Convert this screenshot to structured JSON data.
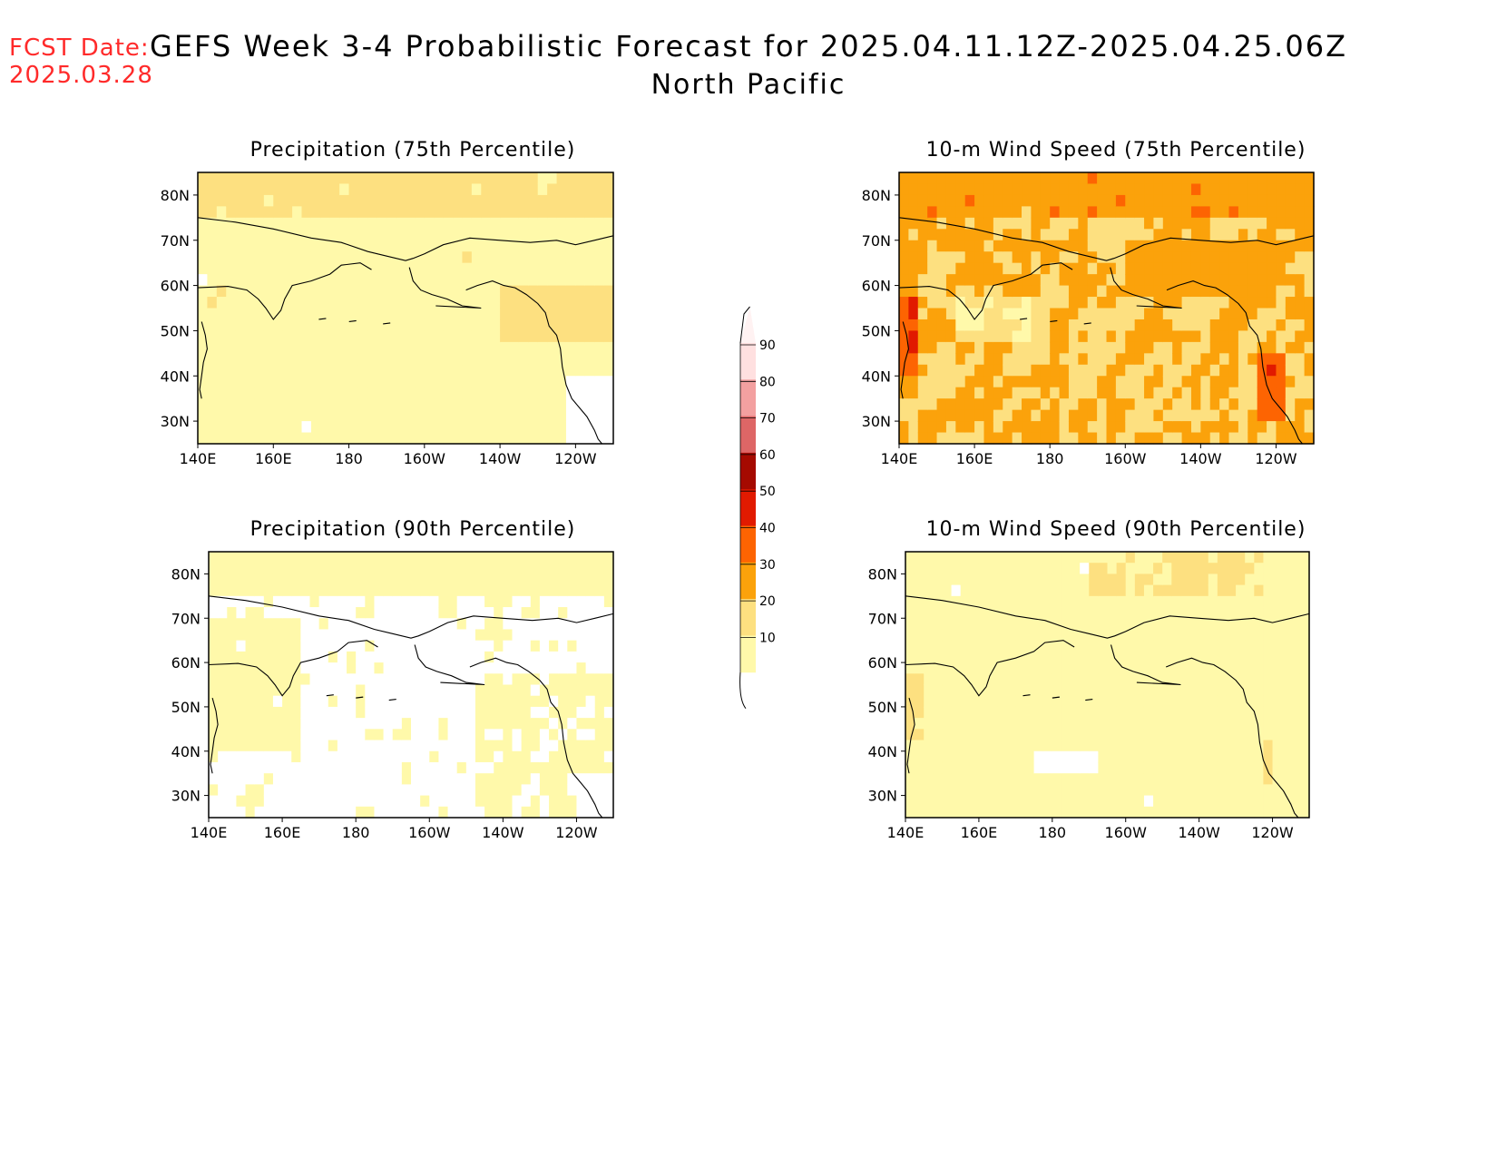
{
  "header": {
    "fcst_label": "FCST Date:",
    "fcst_date": "2025.03.28",
    "title": "GEFS Week 3-4 Probabilistic Forecast for 2025.04.11.12Z-2025.04.25.06Z",
    "subtitle": "North Pacific"
  },
  "colors": {
    "lt10": "#ffffff",
    "c10": "#fff9aa",
    "c20": "#fde080",
    "c30": "#fba20b",
    "c40": "#fd6402",
    "c50": "#e11a00",
    "c60": "#a50a00",
    "c70": "#de6666",
    "c80": "#f3a0a0",
    "c90": "#ffe0e0"
  },
  "axes": {
    "x_ticks": [
      "140E",
      "160E",
      "180",
      "160W",
      "140W",
      "120W"
    ],
    "y_ticks": [
      "80N",
      "70N",
      "60N",
      "50N",
      "40N",
      "30N"
    ]
  },
  "panels": [
    {
      "title": "Precipitation (75th Percentile)",
      "dominant": "10-30"
    },
    {
      "title": "10-m Wind Speed (75th Percentile)",
      "dominant": "20-50"
    },
    {
      "title": "Precipitation (90th Percentile)",
      "dominant": "<10-20"
    },
    {
      "title": "10-m Wind Speed (90th Percentile)",
      "dominant": "10-30"
    }
  ],
  "colorbar": {
    "labels": [
      "90",
      "80",
      "70",
      "60",
      "50",
      "40",
      "30",
      "20",
      "10"
    ]
  }
}
